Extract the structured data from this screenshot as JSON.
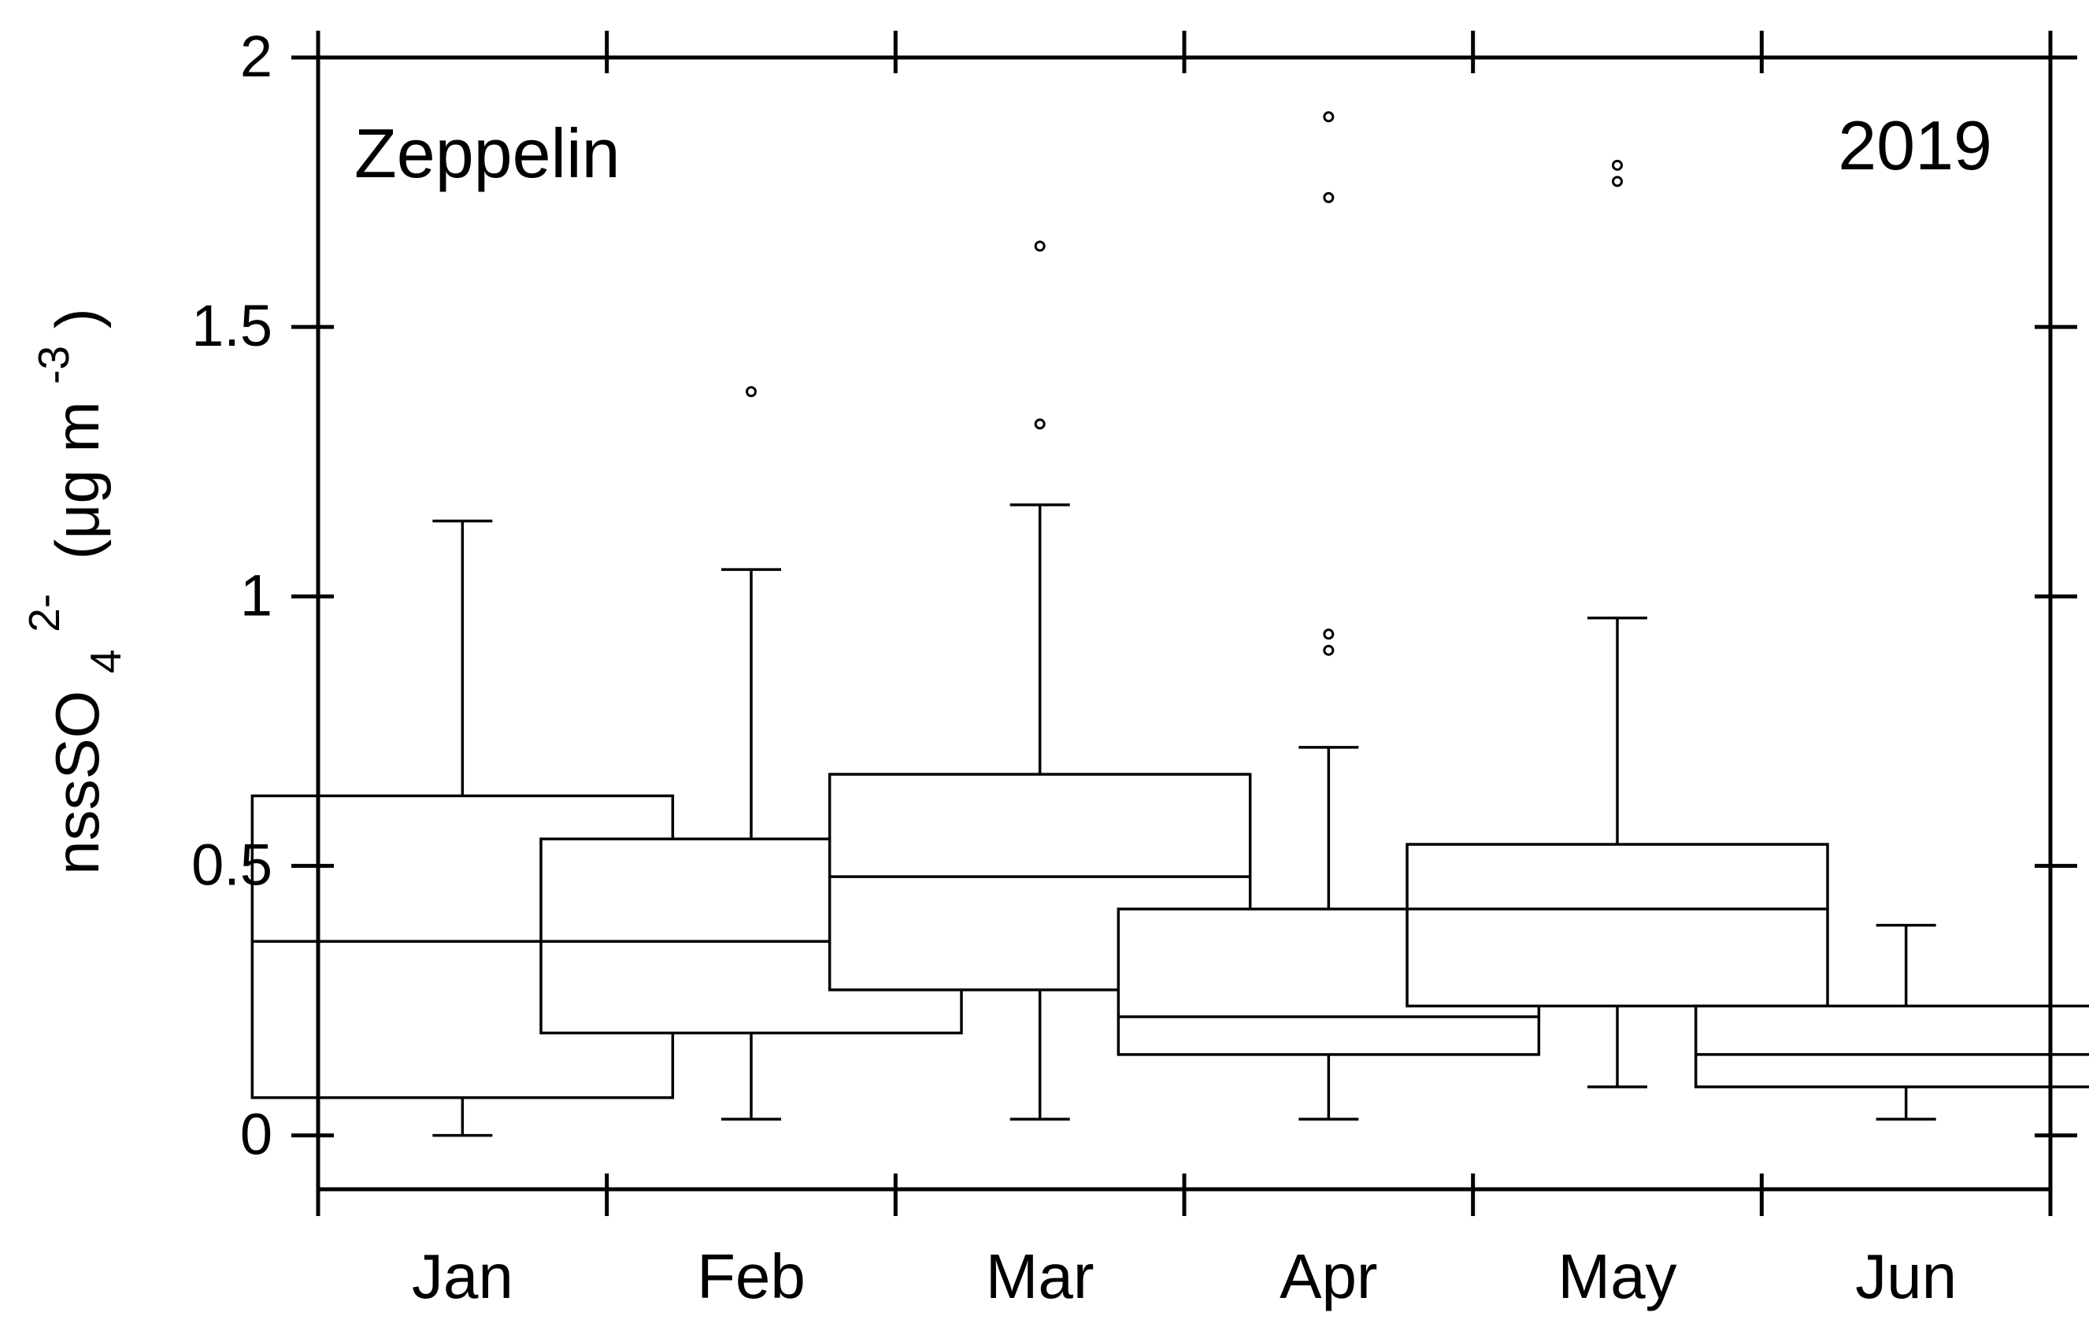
{
  "chart_data": {
    "type": "boxplot",
    "annotations": {
      "station": "Zeppelin",
      "year": "2019"
    },
    "ylabel": {
      "main": "nssSO",
      "subscript": "4",
      "superscript": "2-",
      "unit_open": " (μg m",
      "unit_superscript": "-3",
      "unit_close": ")"
    },
    "ylim": [
      -0.1,
      2
    ],
    "yticks": [
      {
        "value": 0,
        "label": "0"
      },
      {
        "value": 0.5,
        "label": "0.5"
      },
      {
        "value": 1,
        "label": "1"
      },
      {
        "value": 1.5,
        "label": "1.5"
      },
      {
        "value": 2,
        "label": "2"
      }
    ],
    "categories": [
      "Jan",
      "Feb",
      "Mar",
      "Apr",
      "May",
      "Jun"
    ],
    "grid": false,
    "boxes": [
      {
        "category": "Jan",
        "whisker_low": 0.0,
        "q1": 0.07,
        "median": 0.36,
        "q3": 0.63,
        "whisker_high": 1.14,
        "outliers": []
      },
      {
        "category": "Feb",
        "whisker_low": 0.03,
        "q1": 0.19,
        "median": 0.36,
        "q3": 0.55,
        "whisker_high": 1.05,
        "outliers": [
          1.38
        ]
      },
      {
        "category": "Mar",
        "whisker_low": 0.03,
        "q1": 0.27,
        "median": 0.48,
        "q3": 0.67,
        "whisker_high": 1.17,
        "outliers": [
          1.32,
          1.65
        ]
      },
      {
        "category": "Apr",
        "whisker_low": 0.03,
        "q1": 0.15,
        "median": 0.22,
        "q3": 0.42,
        "whisker_high": 0.72,
        "outliers": [
          0.9,
          0.93,
          1.74,
          1.89
        ]
      },
      {
        "category": "May",
        "whisker_low": 0.09,
        "q1": 0.24,
        "median": 0.42,
        "q3": 0.54,
        "whisker_high": 0.96,
        "outliers": [
          1.77,
          1.8
        ]
      },
      {
        "category": "Jun",
        "whisker_low": 0.03,
        "q1": 0.09,
        "median": 0.15,
        "q3": 0.24,
        "whisker_high": 0.39,
        "outliers": []
      }
    ]
  }
}
